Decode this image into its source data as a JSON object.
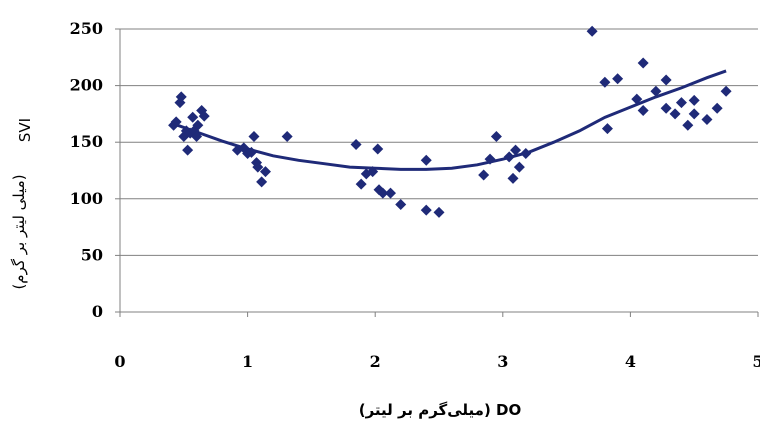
{
  "chart_data": {
    "type": "scatter",
    "xlabel": "DO (میلی‌گرم بر لیتر)",
    "ylabel_main": "SVI",
    "ylabel_unit": "(میلی لیتر بر گرم)",
    "xlim": [
      0,
      5
    ],
    "ylim": [
      0,
      250
    ],
    "x_ticks": [
      0,
      1,
      2,
      3,
      4,
      5
    ],
    "y_ticks": [
      0,
      50,
      100,
      150,
      200,
      250
    ],
    "grid": "horizontal",
    "legend": "none",
    "marker_color": "#1F2A78",
    "trend_color": "#1F2A78",
    "points": [
      [
        0.42,
        165
      ],
      [
        0.44,
        168
      ],
      [
        0.47,
        185
      ],
      [
        0.48,
        190
      ],
      [
        0.5,
        155
      ],
      [
        0.52,
        160
      ],
      [
        0.53,
        143
      ],
      [
        0.55,
        158
      ],
      [
        0.57,
        172
      ],
      [
        0.58,
        160
      ],
      [
        0.6,
        155
      ],
      [
        0.61,
        165
      ],
      [
        0.64,
        178
      ],
      [
        0.66,
        173
      ],
      [
        0.92,
        143
      ],
      [
        0.97,
        145
      ],
      [
        1.0,
        140
      ],
      [
        1.03,
        141
      ],
      [
        1.05,
        155
      ],
      [
        1.07,
        132
      ],
      [
        1.08,
        128
      ],
      [
        1.11,
        115
      ],
      [
        1.14,
        124
      ],
      [
        1.31,
        155
      ],
      [
        1.85,
        148
      ],
      [
        1.89,
        113
      ],
      [
        1.93,
        122
      ],
      [
        1.98,
        124
      ],
      [
        2.02,
        144
      ],
      [
        2.03,
        108
      ],
      [
        2.06,
        105
      ],
      [
        2.12,
        105
      ],
      [
        2.2,
        95
      ],
      [
        2.4,
        134
      ],
      [
        2.4,
        90
      ],
      [
        2.5,
        88
      ],
      [
        2.85,
        121
      ],
      [
        2.9,
        135
      ],
      [
        2.95,
        155
      ],
      [
        3.05,
        137
      ],
      [
        3.08,
        118
      ],
      [
        3.1,
        143
      ],
      [
        3.13,
        128
      ],
      [
        3.18,
        140
      ],
      [
        3.7,
        248
      ],
      [
        3.8,
        203
      ],
      [
        3.82,
        162
      ],
      [
        3.9,
        206
      ],
      [
        4.05,
        188
      ],
      [
        4.1,
        220
      ],
      [
        4.1,
        178
      ],
      [
        4.2,
        195
      ],
      [
        4.28,
        205
      ],
      [
        4.28,
        180
      ],
      [
        4.35,
        175
      ],
      [
        4.4,
        185
      ],
      [
        4.45,
        165
      ],
      [
        4.5,
        187
      ],
      [
        4.5,
        175
      ],
      [
        4.6,
        170
      ],
      [
        4.68,
        180
      ],
      [
        4.75,
        195
      ]
    ],
    "trend": [
      [
        0.45,
        165
      ],
      [
        0.6,
        159
      ],
      [
        0.8,
        151
      ],
      [
        1.0,
        144
      ],
      [
        1.2,
        138
      ],
      [
        1.4,
        134
      ],
      [
        1.6,
        131
      ],
      [
        1.8,
        128
      ],
      [
        2.0,
        127
      ],
      [
        2.2,
        126
      ],
      [
        2.4,
        126
      ],
      [
        2.6,
        127
      ],
      [
        2.8,
        130
      ],
      [
        3.0,
        135
      ],
      [
        3.2,
        141
      ],
      [
        3.4,
        150
      ],
      [
        3.6,
        160
      ],
      [
        3.8,
        172
      ],
      [
        4.0,
        181
      ],
      [
        4.2,
        190
      ],
      [
        4.4,
        198
      ],
      [
        4.6,
        207
      ],
      [
        4.75,
        213
      ]
    ]
  }
}
